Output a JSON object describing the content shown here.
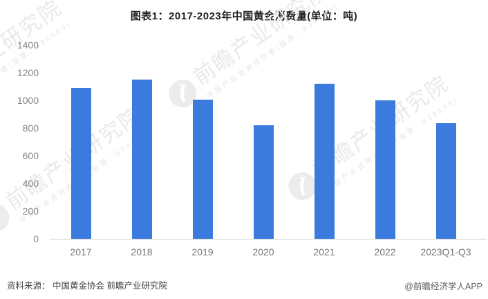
{
  "header": {
    "title": "图表1：2017-2023年中国黄金消费量(单位：吨)"
  },
  "chart_data": {
    "type": "bar",
    "title": "图表1：2017-2023年中国黄金消费量(单位：吨)",
    "unit": "吨",
    "categories": [
      "2017",
      "2018",
      "2019",
      "2020",
      "2021",
      "2022",
      "2023Q1-Q3"
    ],
    "values": [
      1089.07,
      1151.43,
      1002.78,
      820.98,
      1120.9,
      1001.74,
      835.07
    ],
    "ylim": [
      0,
      1400
    ],
    "ytick_step": 200,
    "yticks": [
      0,
      200,
      400,
      600,
      800,
      1000,
      1200,
      1400
    ],
    "grid": false,
    "legend": "none",
    "bar_color": "#3a7bdd",
    "axis_line_color": "#c9cdd2",
    "ytick_label_color": "#83848a",
    "xtick_label_color": "#76777c"
  },
  "watermark": {
    "logo_icon": "qianzhan-logo",
    "brand_text": "前瞻产业研究院",
    "sub_text": "中国产业咨询领导者(股票：839599)"
  },
  "footer": {
    "source": "资料来源： 中国黄金协会 前瞻产业研究院",
    "credit": "@前瞻经济学人APP"
  }
}
